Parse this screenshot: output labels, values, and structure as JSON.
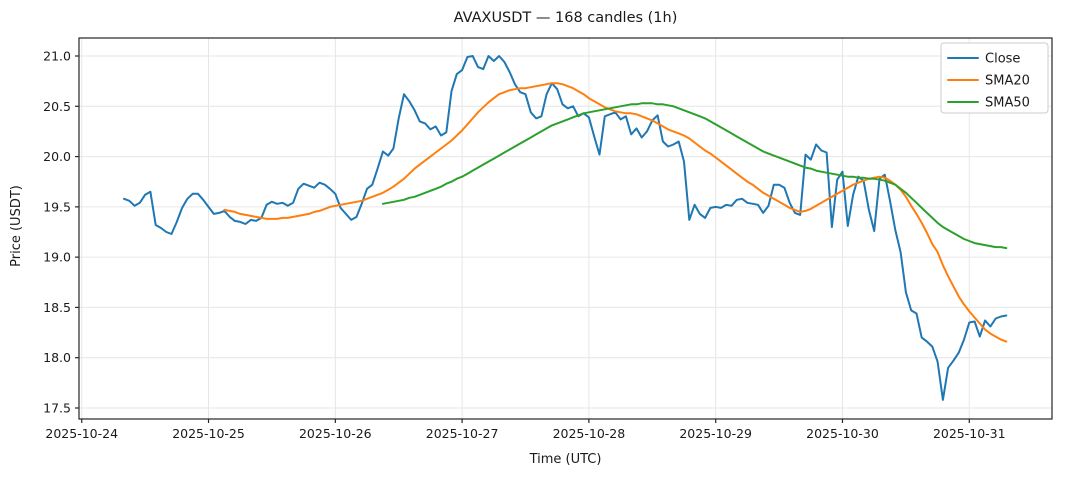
{
  "chart_data": {
    "type": "line",
    "title": "AVAXUSDT — 168 candles (1h)",
    "xlabel": "Time (UTC)",
    "ylabel": "Price (USDT)",
    "x_tick_labels": [
      "2025-10-24",
      "2025-10-25",
      "2025-10-26",
      "2025-10-27",
      "2025-10-28",
      "2025-10-29",
      "2025-10-30",
      "2025-10-31"
    ],
    "x_tick_hour_offsets": [
      -8,
      16,
      40,
      64,
      88,
      112,
      136,
      160
    ],
    "y_ticks": [
      17.5,
      18.0,
      18.5,
      19.0,
      19.5,
      20.0,
      20.5,
      21.0
    ],
    "ylim": [
      17.39,
      21.21
    ],
    "xlim_hours": [
      -8.3,
      175.6
    ],
    "grid": true,
    "legend_position": "upper right",
    "points_per_hour": 1,
    "colors": {
      "close": "#1f77b4",
      "sma20": "#ff7f0e",
      "sma50": "#2ca02c",
      "grid": "#e6e6e6",
      "spine": "#262626",
      "legend_border": "#cccccc",
      "background": "#ffffff"
    },
    "series": [
      {
        "name": "Close",
        "color_key": "close",
        "values": [
          19.58,
          19.56,
          19.51,
          19.54,
          19.62,
          19.65,
          19.32,
          19.29,
          19.25,
          19.23,
          19.35,
          19.49,
          19.58,
          19.63,
          19.63,
          19.57,
          19.5,
          19.43,
          19.44,
          19.46,
          19.4,
          19.36,
          19.35,
          19.33,
          19.37,
          19.36,
          19.39,
          19.52,
          19.55,
          19.53,
          19.54,
          19.51,
          19.54,
          19.68,
          19.73,
          19.71,
          19.69,
          19.74,
          19.72,
          19.68,
          19.63,
          19.49,
          19.43,
          19.37,
          19.4,
          19.53,
          19.68,
          19.72,
          19.88,
          20.05,
          20.01,
          20.08,
          20.38,
          20.62,
          20.55,
          20.46,
          20.35,
          20.33,
          20.27,
          20.3,
          20.21,
          20.24,
          20.65,
          20.82,
          20.86,
          20.99,
          21.0,
          20.89,
          20.87,
          21.0,
          20.95,
          21.0,
          20.94,
          20.84,
          20.72,
          20.64,
          20.62,
          20.44,
          20.38,
          20.4,
          20.62,
          20.73,
          20.67,
          20.52,
          20.48,
          20.5,
          20.4,
          20.43,
          20.39,
          20.2,
          20.02,
          20.4,
          20.42,
          20.44,
          20.37,
          20.4,
          20.22,
          20.28,
          20.19,
          20.25,
          20.36,
          20.41,
          20.15,
          20.1,
          20.12,
          20.15,
          19.95,
          19.37,
          19.52,
          19.43,
          19.39,
          19.49,
          19.5,
          19.49,
          19.52,
          19.51,
          19.57,
          19.58,
          19.54,
          19.53,
          19.52,
          19.44,
          19.51,
          19.72,
          19.72,
          19.69,
          19.54,
          19.44,
          19.42,
          20.02,
          19.97,
          20.12,
          20.06,
          20.04,
          19.3,
          19.77,
          19.85,
          19.31,
          19.62,
          19.8,
          19.76,
          19.47,
          19.26,
          19.78,
          19.82,
          19.56,
          19.27,
          19.05,
          18.65,
          18.47,
          18.44,
          18.2,
          18.16,
          18.11,
          17.96,
          17.58,
          17.9,
          17.97,
          18.05,
          18.18,
          18.35,
          18.36,
          18.21,
          18.37,
          18.31,
          18.39,
          18.41,
          18.42
        ]
      },
      {
        "name": "SMA20",
        "color_key": "sma20",
        "values": [
          null,
          null,
          null,
          null,
          null,
          null,
          null,
          null,
          null,
          null,
          null,
          null,
          null,
          null,
          null,
          null,
          null,
          null,
          null,
          19.47,
          19.46,
          19.45,
          19.43,
          19.42,
          19.41,
          19.4,
          19.39,
          19.38,
          19.38,
          19.38,
          19.39,
          19.39,
          19.4,
          19.41,
          19.42,
          19.43,
          19.45,
          19.46,
          19.48,
          19.5,
          19.51,
          19.52,
          19.53,
          19.54,
          19.55,
          19.56,
          19.58,
          19.6,
          19.62,
          19.64,
          19.67,
          19.7,
          19.74,
          19.78,
          19.83,
          19.88,
          19.92,
          19.96,
          20.0,
          20.04,
          20.08,
          20.12,
          20.16,
          20.21,
          20.26,
          20.32,
          20.38,
          20.44,
          20.49,
          20.54,
          20.58,
          20.62,
          20.64,
          20.66,
          20.67,
          20.68,
          20.68,
          20.69,
          20.7,
          20.71,
          20.72,
          20.73,
          20.73,
          20.72,
          20.7,
          20.68,
          20.65,
          20.62,
          20.58,
          20.55,
          20.52,
          20.49,
          20.47,
          20.45,
          20.44,
          20.43,
          20.43,
          20.42,
          20.4,
          20.38,
          20.36,
          20.33,
          20.3,
          20.27,
          20.25,
          20.23,
          20.21,
          20.18,
          20.14,
          20.1,
          20.06,
          20.03,
          19.99,
          19.95,
          19.91,
          19.87,
          19.83,
          19.79,
          19.75,
          19.72,
          19.68,
          19.64,
          19.61,
          19.58,
          19.55,
          19.52,
          19.49,
          19.47,
          19.45,
          19.46,
          19.48,
          19.51,
          19.54,
          19.57,
          19.6,
          19.63,
          19.66,
          19.69,
          19.72,
          19.74,
          19.76,
          19.78,
          19.79,
          19.8,
          19.79,
          19.76,
          19.72,
          19.67,
          19.6,
          19.51,
          19.43,
          19.34,
          19.24,
          19.13,
          19.05,
          18.92,
          18.81,
          18.71,
          18.61,
          18.53,
          18.46,
          18.4,
          18.34,
          18.28,
          18.24,
          18.21,
          18.18,
          18.16
        ]
      },
      {
        "name": "SMA50",
        "color_key": "sma50",
        "values": [
          null,
          null,
          null,
          null,
          null,
          null,
          null,
          null,
          null,
          null,
          null,
          null,
          null,
          null,
          null,
          null,
          null,
          null,
          null,
          null,
          null,
          null,
          null,
          null,
          null,
          null,
          null,
          null,
          null,
          null,
          null,
          null,
          null,
          null,
          null,
          null,
          null,
          null,
          null,
          null,
          null,
          null,
          null,
          null,
          null,
          null,
          null,
          null,
          null,
          19.53,
          19.54,
          19.55,
          19.56,
          19.57,
          19.59,
          19.6,
          19.62,
          19.64,
          19.66,
          19.68,
          19.7,
          19.73,
          19.75,
          19.78,
          19.8,
          19.83,
          19.86,
          19.89,
          19.92,
          19.95,
          19.98,
          20.01,
          20.04,
          20.07,
          20.1,
          20.13,
          20.16,
          20.19,
          20.22,
          20.25,
          20.28,
          20.31,
          20.33,
          20.35,
          20.37,
          20.39,
          20.41,
          20.43,
          20.44,
          20.45,
          20.46,
          20.47,
          20.48,
          20.49,
          20.5,
          20.51,
          20.52,
          20.52,
          20.53,
          20.53,
          20.53,
          20.52,
          20.52,
          20.51,
          20.5,
          20.48,
          20.46,
          20.44,
          20.42,
          20.4,
          20.38,
          20.35,
          20.32,
          20.29,
          20.26,
          20.23,
          20.2,
          20.17,
          20.14,
          20.11,
          20.08,
          20.05,
          20.03,
          20.01,
          19.99,
          19.97,
          19.95,
          19.93,
          19.91,
          19.89,
          19.88,
          19.86,
          19.85,
          19.84,
          19.83,
          19.82,
          19.81,
          19.8,
          19.8,
          19.79,
          19.79,
          19.78,
          19.78,
          19.77,
          19.76,
          19.74,
          19.72,
          19.68,
          19.64,
          19.59,
          19.54,
          19.49,
          19.44,
          19.39,
          19.34,
          19.3,
          19.27,
          19.24,
          19.21,
          19.18,
          19.16,
          19.14,
          19.13,
          19.12,
          19.11,
          19.1,
          19.1,
          19.09
        ]
      }
    ],
    "legend": [
      "Close",
      "SMA20",
      "SMA50"
    ]
  }
}
